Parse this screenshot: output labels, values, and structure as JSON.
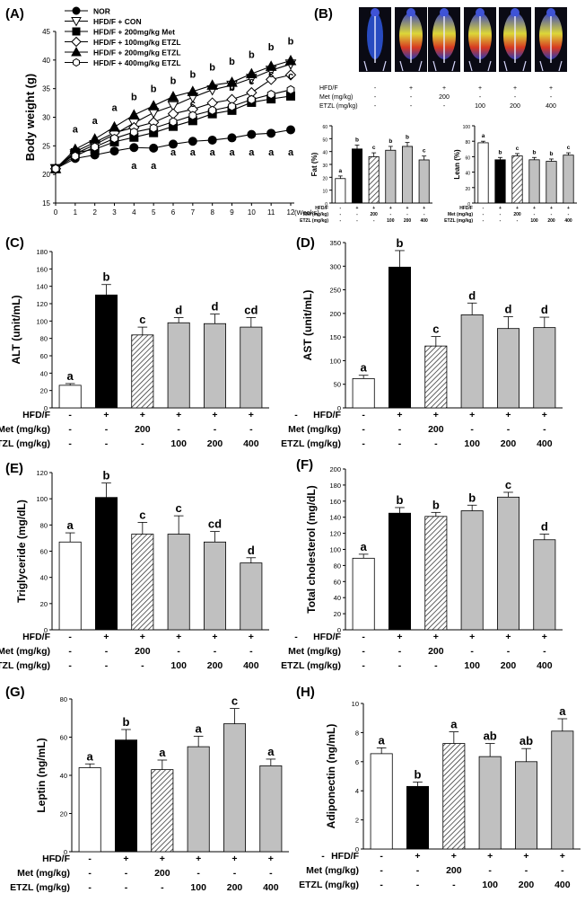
{
  "colors": {
    "nor": "#ffffff",
    "con": "#000000",
    "met": "hatch",
    "etzl": "#c0c0c0",
    "outline": "#000000"
  },
  "treatment_rows": [
    {
      "label": "HFD/F",
      "values": [
        "-",
        "+",
        "+",
        "+",
        "+",
        "+"
      ]
    },
    {
      "label": "Met (mg/kg)",
      "values": [
        "-",
        "-",
        "200",
        "-",
        "-",
        "-"
      ]
    },
    {
      "label": "ETZL (mg/kg)",
      "values": [
        "-",
        "-",
        "-",
        "100",
        "200",
        "400"
      ]
    }
  ],
  "panelA": {
    "letter": "(A)",
    "legend": [
      "NOR",
      "HFD/F + CON",
      "HFD/F + 200mg/kg Met",
      "HFD/F + 100mg/kg ETZL",
      "HFD/F + 200mg/kg ETZL",
      "HFD/F + 400mg/kg ETZL"
    ]
  },
  "panelB": {
    "letter": "(B)",
    "scan_rows": [
      {
        "label": "HFD/F",
        "values": [
          "-",
          "+",
          "+",
          "+",
          "+",
          "+"
        ]
      },
      {
        "label": "Met (mg/kg)",
        "values": [
          "-",
          "-",
          "200",
          "-",
          "-",
          "-"
        ]
      },
      {
        "label": "ETZL (mg/kg)",
        "values": [
          "-",
          "-",
          "-",
          "100",
          "200",
          "400"
        ]
      }
    ]
  },
  "chart_data": [
    {
      "id": "A",
      "type": "line",
      "title": "",
      "xlabel": "(Weeks)",
      "ylabel": "Body weight (g)",
      "x": [
        0,
        1,
        2,
        3,
        4,
        5,
        6,
        7,
        8,
        9,
        10,
        11,
        12
      ],
      "xlim": [
        0,
        12
      ],
      "ylim": [
        15,
        45
      ],
      "yticks": [
        15,
        20,
        25,
        30,
        35,
        40,
        45
      ],
      "series": [
        {
          "name": "NOR",
          "marker": "circle",
          "fill": "#000",
          "values": [
            21,
            22.8,
            23.4,
            24.1,
            24.7,
            24.6,
            25.3,
            25.8,
            26.0,
            26.4,
            27.0,
            27.2,
            27.8
          ]
        },
        {
          "name": "HFD/F + CON",
          "marker": "tri-down",
          "fill": "#fff",
          "values": [
            21,
            23.6,
            25.2,
            27.0,
            29.0,
            30.8,
            32.0,
            33.5,
            34.8,
            35.6,
            36.8,
            38.2,
            39.3
          ]
        },
        {
          "name": "HFD/F + 200mg/kg Met",
          "marker": "square",
          "fill": "#000",
          "values": [
            21,
            23.8,
            24.4,
            25.7,
            26.5,
            27.3,
            28.4,
            29.4,
            30.6,
            31.2,
            32.6,
            33.2,
            33.7
          ]
        },
        {
          "name": "HFD/F + 100mg/kg ETZL",
          "marker": "diamond",
          "fill": "#fff",
          "values": [
            21,
            24.0,
            25.6,
            27.3,
            28.2,
            29.1,
            30.6,
            31.4,
            32.5,
            33.1,
            34.3,
            36.6,
            37.4
          ]
        },
        {
          "name": "HFD/F + 200mg/kg ETZL",
          "marker": "tri-up",
          "fill": "#000",
          "values": [
            21,
            24.4,
            26.2,
            28.3,
            30.4,
            32.0,
            33.6,
            34.5,
            35.6,
            36.1,
            37.6,
            38.9,
            39.9
          ]
        },
        {
          "name": "HFD/F + 400mg/kg ETZL",
          "marker": "hexagon",
          "fill": "#fff",
          "values": [
            21,
            23.2,
            24.8,
            26.3,
            27.4,
            28.1,
            29.2,
            30.3,
            31.2,
            31.9,
            33.1,
            34.0,
            34.8
          ]
        }
      ],
      "annotations": [
        {
          "x": 1,
          "y": 27.3,
          "text": "a"
        },
        {
          "x": 2,
          "y": 28.8,
          "text": "a"
        },
        {
          "x": 3,
          "y": 31.1,
          "text": "a"
        },
        {
          "x": 4,
          "y": 33.0,
          "text": "b"
        },
        {
          "x": 5,
          "y": 34.4,
          "text": "b"
        },
        {
          "x": 6,
          "y": 35.8,
          "text": "b"
        },
        {
          "x": 7,
          "y": 36.9,
          "text": "b"
        },
        {
          "x": 8,
          "y": 38.2,
          "text": "b"
        },
        {
          "x": 9,
          "y": 39.2,
          "text": "b"
        },
        {
          "x": 10,
          "y": 40.4,
          "text": "b"
        },
        {
          "x": 11,
          "y": 41.7,
          "text": "b"
        },
        {
          "x": 12,
          "y": 42.7,
          "text": "b"
        },
        {
          "x": 3,
          "y": 23.7,
          "text": "a"
        },
        {
          "x": 4,
          "y": 21.0,
          "text": "a"
        },
        {
          "x": 5,
          "y": 21.0,
          "text": "a"
        },
        {
          "x": 6,
          "y": 23.3,
          "text": "a"
        },
        {
          "x": 7,
          "y": 23.3,
          "text": "a"
        },
        {
          "x": 8,
          "y": 23.3,
          "text": "a"
        },
        {
          "x": 9,
          "y": 23.3,
          "text": "a"
        },
        {
          "x": 10,
          "y": 23.3,
          "text": "a"
        },
        {
          "x": 11,
          "y": 23.3,
          "text": "a"
        },
        {
          "x": 12,
          "y": 23.3,
          "text": "a"
        },
        {
          "x": 9,
          "y": 34.6,
          "text": "b"
        },
        {
          "x": 10,
          "y": 35.7,
          "text": "c"
        },
        {
          "x": 11,
          "y": 37.0,
          "text": "c"
        },
        {
          "x": 12,
          "y": 36.7,
          "text": "c"
        },
        {
          "x": 7,
          "y": 31.8,
          "text": "c"
        }
      ]
    },
    {
      "id": "B-fat",
      "type": "bar",
      "ylabel": "Fat (%)",
      "categories": [
        "NOR",
        "CON",
        "Met200",
        "ETZL100",
        "ETZL200",
        "ETZL400"
      ],
      "values": [
        19,
        42,
        36,
        41,
        44,
        33.5
      ],
      "errors": [
        2,
        3,
        3,
        3,
        3,
        3
      ],
      "letters": [
        "a",
        "b",
        "c",
        "b",
        "b",
        "c"
      ],
      "ylim": [
        0,
        60
      ],
      "yticks": [
        0,
        10,
        20,
        30,
        40,
        50,
        60
      ]
    },
    {
      "id": "B-lean",
      "type": "bar",
      "ylabel": "Lean (%)",
      "categories": [
        "NOR",
        "CON",
        "Met200",
        "ETZL100",
        "ETZL200",
        "ETZL400"
      ],
      "values": [
        78,
        56,
        61,
        56,
        54,
        62
      ],
      "errors": [
        2,
        3,
        3,
        3,
        3,
        3
      ],
      "letters": [
        "a",
        "b",
        "c",
        "b",
        "b",
        "c"
      ],
      "ylim": [
        0,
        100
      ],
      "yticks": [
        0,
        20,
        40,
        60,
        80,
        100
      ]
    },
    {
      "id": "C",
      "letter": "(C)",
      "type": "bar",
      "ylabel": "ALT (unit/mL)",
      "categories": [
        "NOR",
        "CON",
        "Met200",
        "ETZL100",
        "ETZL200",
        "ETZL400"
      ],
      "values": [
        26,
        130,
        84,
        98,
        97,
        93
      ],
      "errors": [
        2,
        12,
        9,
        6,
        11,
        11
      ],
      "letters": [
        "a",
        "b",
        "c",
        "d",
        "d",
        "cd"
      ],
      "ylim": [
        0,
        180
      ],
      "yticks": [
        0,
        20,
        40,
        60,
        80,
        100,
        120,
        140,
        160,
        180
      ]
    },
    {
      "id": "D",
      "letter": "(D)",
      "type": "bar",
      "ylabel": "AST (unit/mL)",
      "categories": [
        "NOR",
        "CON",
        "Met200",
        "ETZL100",
        "ETZL200",
        "ETZL400"
      ],
      "values": [
        62,
        298,
        131,
        197,
        168,
        170
      ],
      "errors": [
        7,
        35,
        20,
        25,
        25,
        22
      ],
      "letters": [
        "a",
        "b",
        "c",
        "d",
        "d",
        "d"
      ],
      "ylim": [
        0,
        350
      ],
      "yticks": [
        0,
        50,
        100,
        150,
        200,
        250,
        300,
        350
      ]
    },
    {
      "id": "E",
      "letter": "(E)",
      "type": "bar",
      "ylabel": "Triglyceride (mg/dL)",
      "categories": [
        "NOR",
        "CON",
        "Met200",
        "ETZL100",
        "ETZL200",
        "ETZL400"
      ],
      "values": [
        67,
        101,
        73,
        73,
        67,
        51
      ],
      "errors": [
        7,
        11,
        9,
        14,
        8,
        4
      ],
      "letters": [
        "a",
        "b",
        "c",
        "c",
        "cd",
        "d"
      ],
      "ylim": [
        0,
        120
      ],
      "yticks": [
        0,
        20,
        40,
        60,
        80,
        100,
        120
      ]
    },
    {
      "id": "F",
      "letter": "(F)",
      "type": "bar",
      "ylabel": "Total cholesterol (mg/dL)",
      "categories": [
        "NOR",
        "CON",
        "Met200",
        "ETZL100",
        "ETZL200",
        "ETZL400"
      ],
      "values": [
        89,
        145,
        141,
        148,
        165,
        112
      ],
      "errors": [
        5,
        7,
        5,
        7,
        6,
        7
      ],
      "letters": [
        "a",
        "b",
        "b",
        "b",
        "c",
        "d"
      ],
      "ylim": [
        0,
        200
      ],
      "yticks": [
        0,
        20,
        40,
        60,
        80,
        100,
        120,
        140,
        160,
        180,
        200
      ]
    },
    {
      "id": "G",
      "letter": "(G)",
      "type": "bar",
      "ylabel": "Leptin (ng/mL)",
      "categories": [
        "NOR",
        "CON",
        "Met200",
        "ETZL100",
        "ETZL200",
        "ETZL400"
      ],
      "values": [
        44,
        58.5,
        43,
        55,
        67,
        45
      ],
      "errors": [
        2,
        5.5,
        5,
        5.5,
        8,
        3.5
      ],
      "letters": [
        "a",
        "b",
        "a",
        "a",
        "c",
        "a"
      ],
      "ylim": [
        0,
        80
      ],
      "yticks": [
        0,
        20,
        40,
        60,
        80
      ]
    },
    {
      "id": "H",
      "letter": "(H)",
      "type": "bar",
      "ylabel": "Adiponectin (ng/mL)",
      "categories": [
        "NOR",
        "CON",
        "Met200",
        "ETZL100",
        "ETZL200",
        "ETZL400"
      ],
      "values": [
        6.55,
        4.3,
        7.25,
        6.35,
        6.0,
        8.1
      ],
      "errors": [
        0.4,
        0.3,
        0.8,
        0.9,
        0.9,
        0.85
      ],
      "letters": [
        "a",
        "b",
        "a",
        "ab",
        "ab",
        "a"
      ],
      "ylim": [
        0,
        10
      ],
      "yticks": [
        0,
        2,
        4,
        6,
        8,
        10
      ]
    }
  ]
}
